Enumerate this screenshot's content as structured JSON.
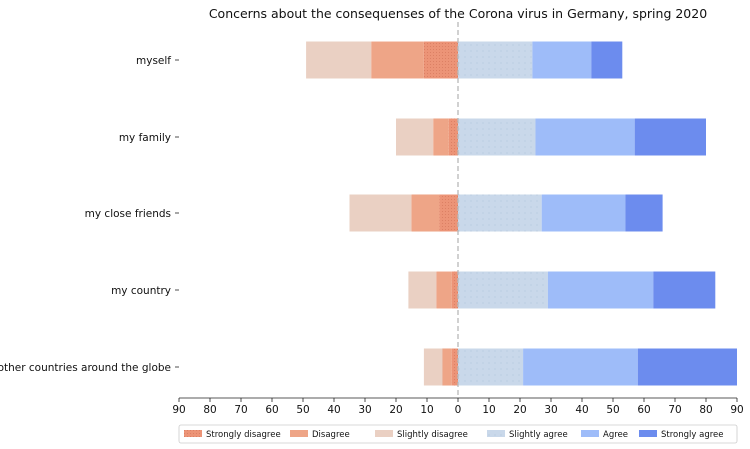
{
  "chart_data": {
    "type": "bar",
    "orientation": "horizontal-diverging-stacked",
    "title": "Concerns about the consequenses of the Corona virus in Germany, spring 2020",
    "xlabel": "",
    "ylabel": "",
    "xlim": [
      -90,
      90
    ],
    "x_ticks": [
      "90",
      "80",
      "70",
      "60",
      "50",
      "40",
      "30",
      "20",
      "10",
      "0",
      "10",
      "20",
      "30",
      "40",
      "50",
      "60",
      "70",
      "80",
      "90"
    ],
    "grid": false,
    "center_line": "dashed vertical line at 0",
    "legend_position": "bottom",
    "categories": [
      "myself",
      "my family",
      "my close friends",
      "my country",
      "other countries around the globe"
    ],
    "series": [
      {
        "name": "Strongly disagree",
        "side": "negative",
        "color": "#ec9477",
        "pattern": "dots",
        "values": [
          11,
          3,
          6,
          2,
          2
        ]
      },
      {
        "name": "Disagree",
        "side": "negative",
        "color": "#f1aa8c",
        "pattern": "dense-dots",
        "values": [
          17,
          5,
          9,
          5,
          3
        ]
      },
      {
        "name": "Slightly disagree",
        "side": "negative",
        "color": "#ead0c3",
        "pattern": "none",
        "values": [
          21,
          12,
          20,
          9,
          6
        ]
      },
      {
        "name": "Slightly agree",
        "side": "positive",
        "color": "#c9d8ea",
        "pattern": "sparse-dots",
        "values": [
          24,
          25,
          27,
          29,
          21
        ]
      },
      {
        "name": "Agree",
        "side": "positive",
        "color": "#9ebcf9",
        "pattern": "none",
        "values": [
          19,
          32,
          27,
          34,
          37
        ]
      },
      {
        "name": "Strongly agree",
        "side": "positive",
        "color": "#6c8cee",
        "pattern": "none",
        "values": [
          10,
          23,
          12,
          20,
          32
        ]
      }
    ]
  }
}
